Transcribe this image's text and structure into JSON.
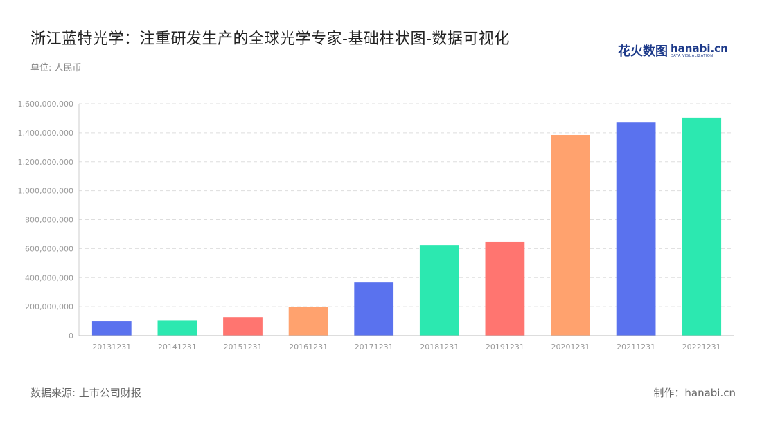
{
  "header": {
    "title": "浙江蓝特光学：注重研发生产的全球光学专家-基础柱状图-数据可视化",
    "unit": "单位: 人民币"
  },
  "logo": {
    "cn": "花火数图",
    "en": "hanabi.cn",
    "sub": "DATA VISUALIZATION"
  },
  "footer": {
    "source": "数据来源: 上市公司财报",
    "maker": "制作：hanabi.cn"
  },
  "chart_data": {
    "type": "bar",
    "title": "浙江蓝特光学：注重研发生产的全球光学专家-基础柱状图-数据可视化",
    "ylabel": "单位: 人民币",
    "xlabel": "",
    "ylim": [
      0,
      1600000000
    ],
    "yticks": [
      0,
      200000000,
      400000000,
      600000000,
      800000000,
      1000000000,
      1200000000,
      1400000000,
      1600000000
    ],
    "ytick_labels": [
      "0",
      "200,000,000",
      "400,000,000",
      "600,000,000",
      "800,000,000",
      "1,000,000,000",
      "1,200,000,000",
      "1,400,000,000",
      "1,600,000,000"
    ],
    "grid": true,
    "categories": [
      "20131231",
      "20141231",
      "20151231",
      "20161231",
      "20171231",
      "20181231",
      "20191231",
      "20201231",
      "20211231",
      "20221231"
    ],
    "values": [
      100000000,
      103000000,
      128000000,
      198000000,
      367000000,
      625000000,
      645000000,
      1385000000,
      1470000000,
      1505000000
    ],
    "colors": [
      "#5a72ee",
      "#2ce8b0",
      "#ff7570",
      "#ffa26e",
      "#5a72ee",
      "#2ce8b0",
      "#ff7570",
      "#ffa26e",
      "#5a72ee",
      "#2ce8b0"
    ]
  }
}
